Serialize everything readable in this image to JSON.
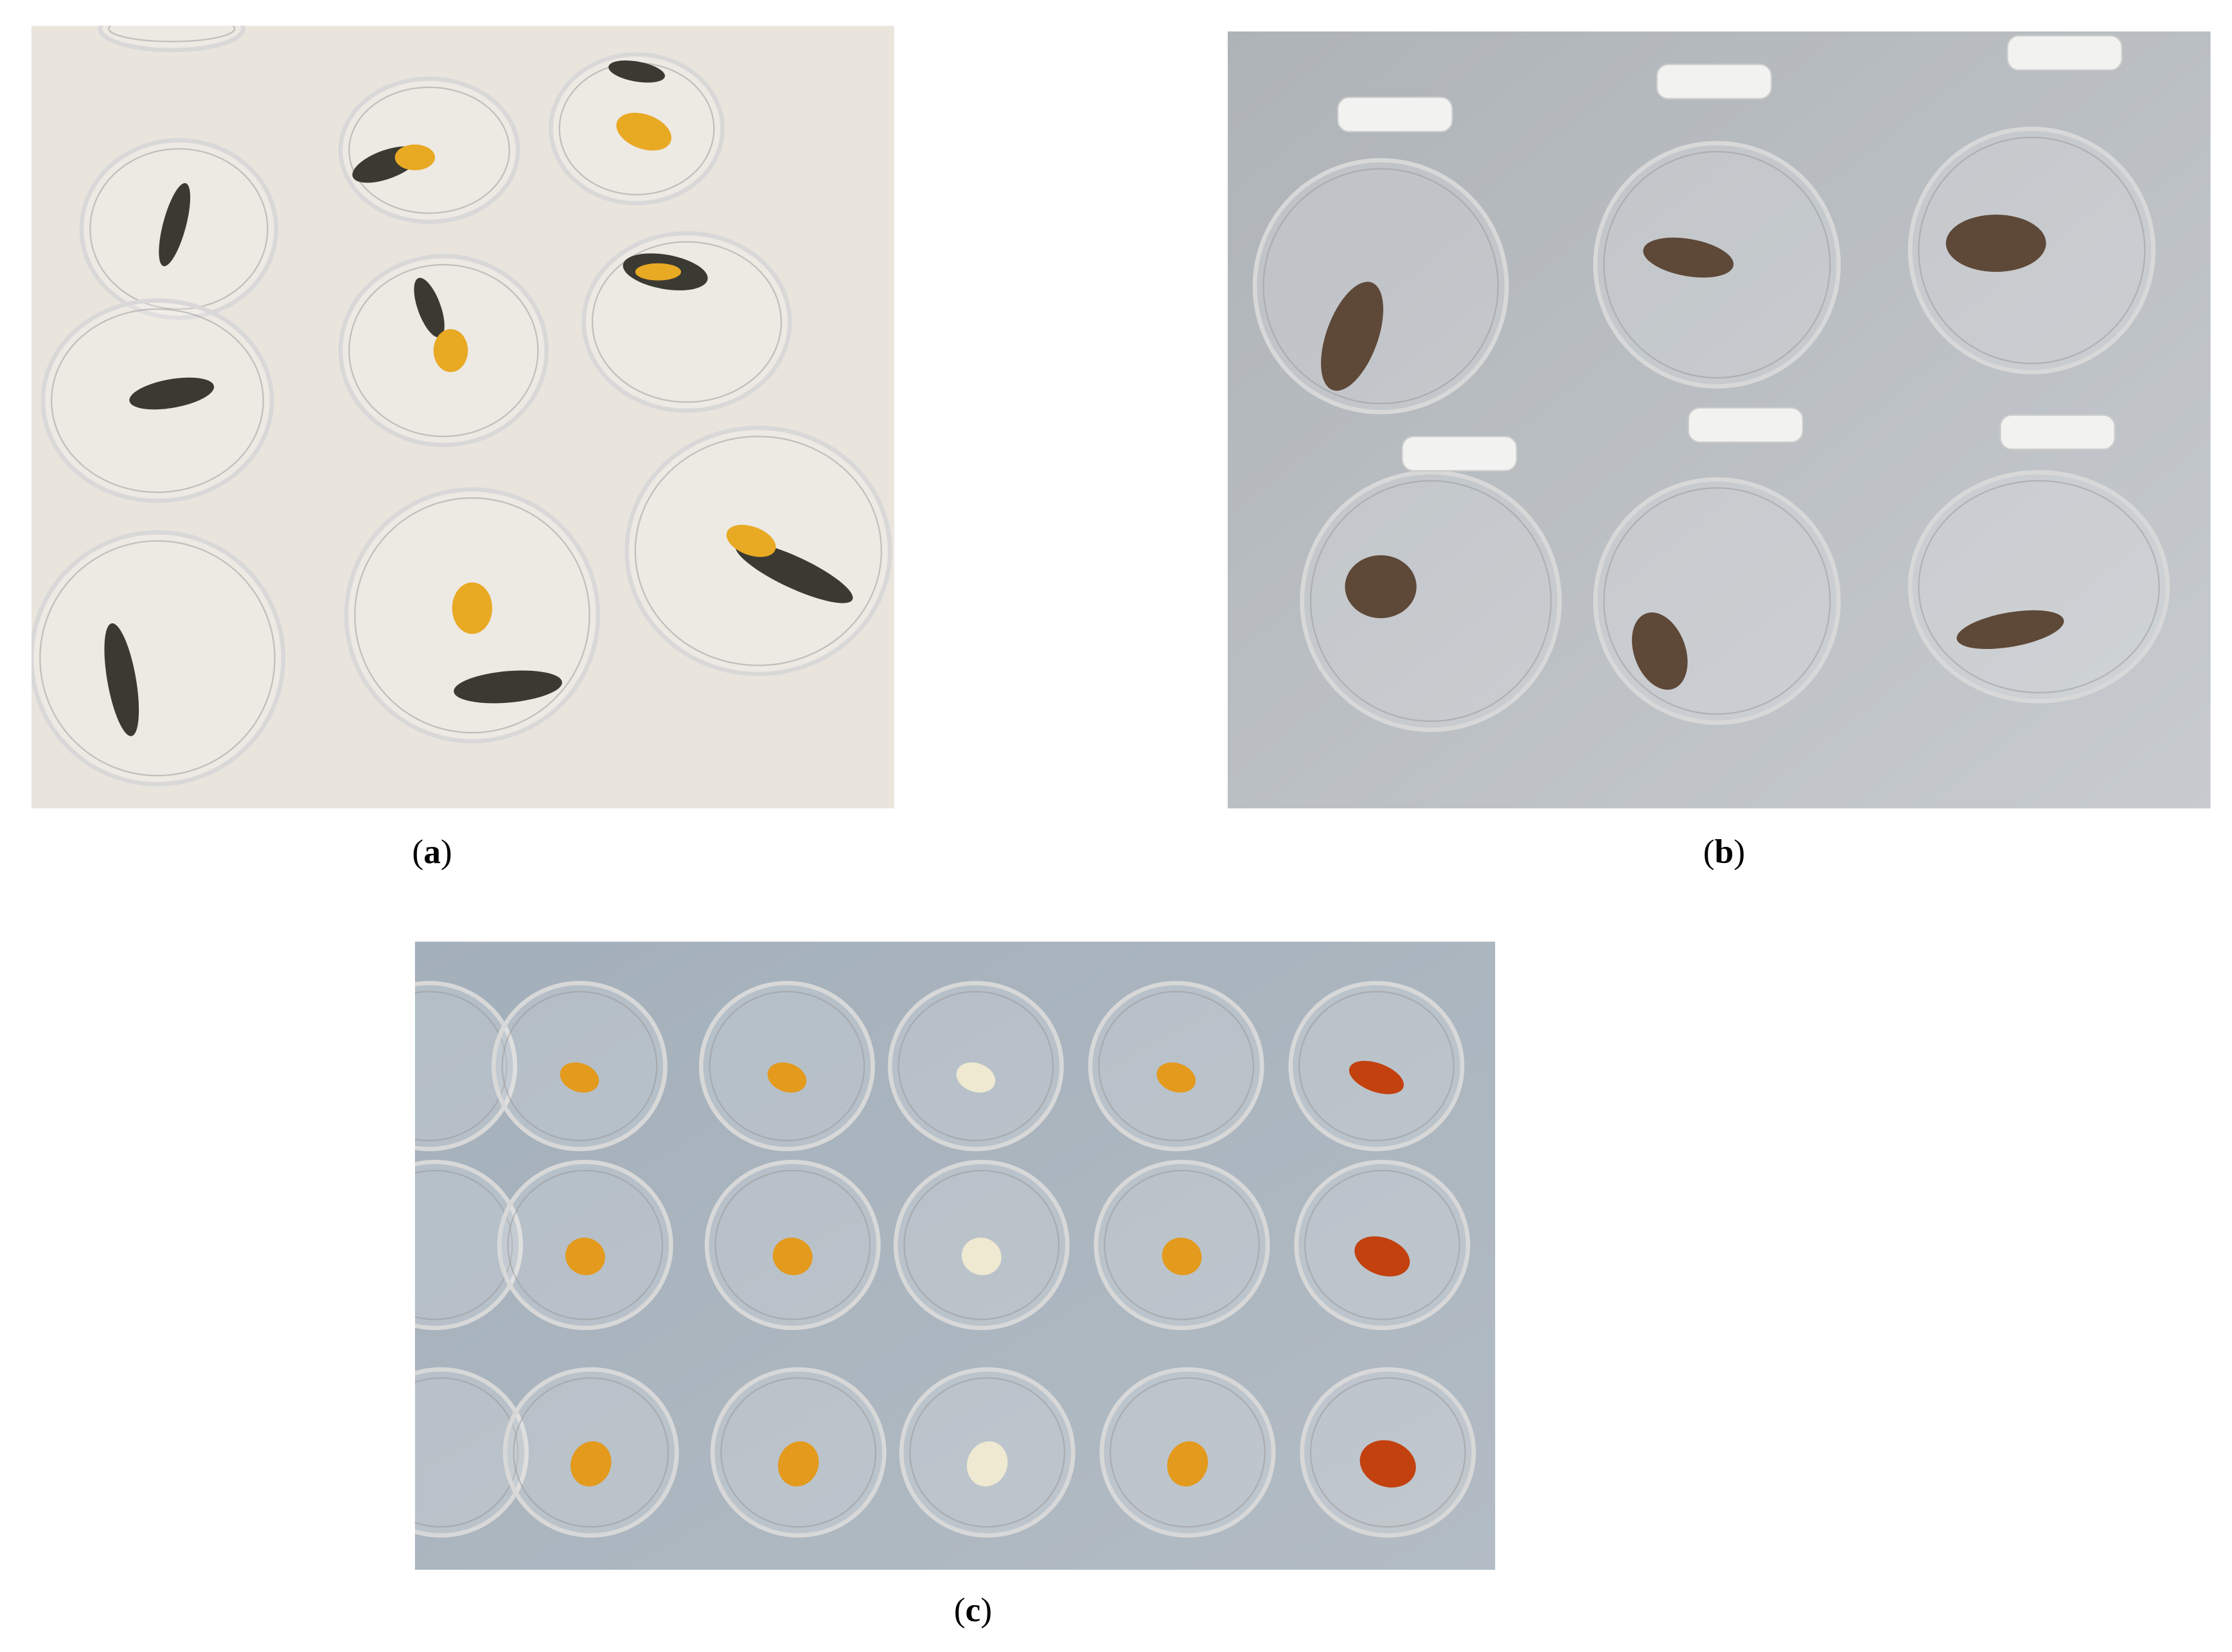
{
  "panels": [
    {
      "open": "(",
      "letter": "a",
      "close": ")"
    },
    {
      "open": "(",
      "letter": "b",
      "close": ")"
    },
    {
      "open": "(",
      "letter": "c",
      "close": ")"
    }
  ]
}
